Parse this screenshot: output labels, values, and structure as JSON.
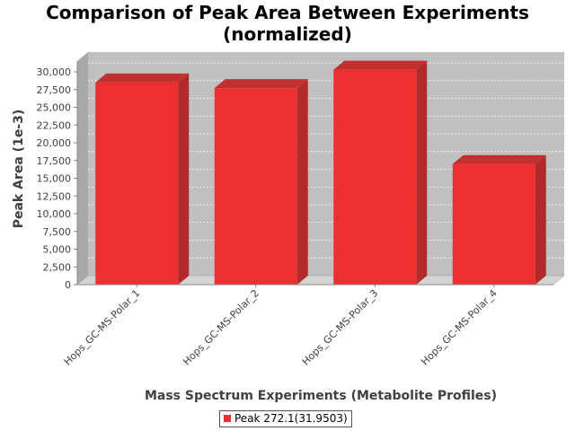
{
  "chart_data": {
    "type": "bar",
    "title_lines": [
      "Comparison of Peak Area Between Experiments",
      "(normalized)"
    ],
    "xlabel": "Mass Spectrum Experiments (Metabolite Profiles)",
    "ylabel": "Peak Area (1e-3)",
    "categories": [
      "Hops_GC-MS-Polar_1",
      "Hops_GC-MS-Polar_2",
      "Hops_GC-MS-Polar_3",
      "Hops_GC-MS-Polar_4"
    ],
    "series": [
      {
        "name": "Peak 272.1(31.9503)",
        "values": [
          28500,
          27700,
          30300,
          17000
        ]
      }
    ],
    "ylim": [
      0,
      30000
    ],
    "yticks": [
      "0",
      "2,500",
      "5,000",
      "7,500",
      "10,000",
      "12,500",
      "15,000",
      "17,500",
      "20,000",
      "22,500",
      "25,000",
      "27,500",
      "30,000"
    ],
    "ytick_values": [
      0,
      2500,
      5000,
      7500,
      10000,
      12500,
      15000,
      17500,
      20000,
      22500,
      25000,
      27500,
      30000
    ],
    "grid": true,
    "legend_position": "bottom-center",
    "colors": {
      "bar_front": "#ee2f2f",
      "bar_side": "#b22a2a",
      "bar_top": "#c23030",
      "plot_back": "#c0c0c0",
      "plot_floor": "#d4d4d4",
      "plot_side": "#a8a8a8"
    }
  }
}
